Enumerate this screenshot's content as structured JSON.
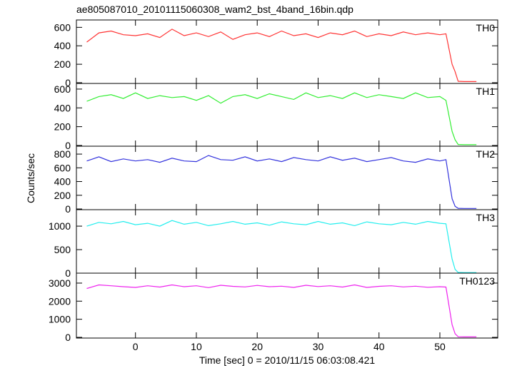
{
  "chart_data": [
    {
      "type": "line",
      "title": "ae805087010_20101115060308_wam2_bst_4band_16bin.qdp",
      "x": [
        -8,
        -6,
        -4,
        -2,
        0,
        2,
        4,
        6,
        8,
        10,
        12,
        14,
        16,
        18,
        20,
        22,
        24,
        26,
        28,
        30,
        32,
        34,
        36,
        38,
        40,
        42,
        44,
        46,
        48,
        50,
        51,
        52,
        52.5,
        53,
        54,
        56
      ],
      "xlim": [
        -9.7,
        59.5
      ],
      "ylim": [
        -8,
        680
      ],
      "yticks": [
        0,
        200,
        400,
        600
      ],
      "series": [
        {
          "name": "TH0",
          "color": "#ff3333",
          "values": [
            440,
            540,
            560,
            520,
            510,
            530,
            490,
            580,
            510,
            540,
            500,
            550,
            470,
            520,
            540,
            500,
            560,
            510,
            530,
            490,
            540,
            520,
            560,
            500,
            530,
            510,
            550,
            520,
            540,
            520,
            530,
            200,
            120,
            15,
            12,
            12
          ]
        }
      ]
    },
    {
      "type": "line",
      "x": [
        -8,
        -6,
        -4,
        -2,
        0,
        2,
        4,
        6,
        8,
        10,
        12,
        14,
        16,
        18,
        20,
        22,
        24,
        26,
        28,
        30,
        32,
        34,
        36,
        38,
        40,
        42,
        44,
        46,
        48,
        50,
        51,
        52,
        52.5,
        53,
        54,
        56
      ],
      "xlim": [
        -9.7,
        59.5
      ],
      "ylim": [
        -8,
        660
      ],
      "yticks": [
        0,
        200,
        400,
        600
      ],
      "series": [
        {
          "name": "TH1",
          "color": "#33ee33",
          "values": [
            470,
            520,
            540,
            500,
            560,
            500,
            530,
            510,
            520,
            480,
            530,
            450,
            520,
            540,
            500,
            550,
            520,
            490,
            560,
            510,
            530,
            500,
            560,
            510,
            540,
            520,
            500,
            560,
            510,
            520,
            480,
            150,
            60,
            10,
            8,
            8
          ]
        }
      ]
    },
    {
      "type": "line",
      "ylabel": "Counts/sec",
      "x": [
        -8,
        -6,
        -4,
        -2,
        0,
        2,
        4,
        6,
        8,
        10,
        12,
        14,
        16,
        18,
        20,
        22,
        24,
        26,
        28,
        30,
        32,
        34,
        36,
        38,
        40,
        42,
        44,
        46,
        48,
        50,
        51,
        52,
        52.5,
        53,
        54,
        56
      ],
      "xlim": [
        -9.7,
        59.5
      ],
      "ylim": [
        -10,
        915
      ],
      "yticks": [
        0,
        200,
        400,
        600,
        800
      ],
      "series": [
        {
          "name": "TH2",
          "color": "#3333dd",
          "values": [
            700,
            760,
            690,
            730,
            700,
            720,
            680,
            740,
            700,
            690,
            780,
            720,
            710,
            760,
            700,
            730,
            690,
            750,
            720,
            700,
            760,
            710,
            740,
            690,
            720,
            750,
            700,
            680,
            730,
            700,
            720,
            150,
            40,
            10,
            8,
            8
          ]
        }
      ]
    },
    {
      "type": "line",
      "x": [
        -8,
        -6,
        -4,
        -2,
        0,
        2,
        4,
        6,
        8,
        10,
        12,
        14,
        16,
        18,
        20,
        22,
        24,
        26,
        28,
        30,
        32,
        34,
        36,
        38,
        40,
        42,
        44,
        46,
        48,
        50,
        51,
        52,
        52.5,
        53,
        54,
        56
      ],
      "xlim": [
        -9.7,
        59.5
      ],
      "ylim": [
        0,
        1350
      ],
      "yticks": [
        0,
        500,
        1000
      ],
      "series": [
        {
          "name": "TH3",
          "color": "#22eeee",
          "values": [
            1000,
            1080,
            1050,
            1100,
            1030,
            1060,
            1000,
            1120,
            1040,
            1080,
            1010,
            1050,
            1100,
            1040,
            1070,
            1020,
            1090,
            1050,
            1030,
            1100,
            1040,
            1070,
            1010,
            1090,
            1050,
            1030,
            1080,
            1040,
            1100,
            1060,
            1050,
            300,
            80,
            15,
            12,
            12
          ]
        }
      ]
    },
    {
      "type": "line",
      "xlabel": "Time [sec] 0 = 2010/11/15 06:03:08.421",
      "x": [
        -8,
        -6,
        -4,
        -2,
        0,
        2,
        4,
        6,
        8,
        10,
        12,
        14,
        16,
        18,
        20,
        22,
        24,
        26,
        28,
        30,
        32,
        34,
        36,
        38,
        40,
        42,
        44,
        46,
        48,
        50,
        51,
        52,
        52.5,
        53,
        54,
        56
      ],
      "xlim": [
        -9.7,
        59.5
      ],
      "ylim": [
        -40,
        3550
      ],
      "yticks": [
        0,
        1000,
        2000,
        3000
      ],
      "xticks": [
        0,
        10,
        20,
        30,
        40,
        50
      ],
      "series": [
        {
          "name": "TH0123",
          "color": "#ee22ee",
          "values": [
            2700,
            2900,
            2850,
            2800,
            2760,
            2850,
            2780,
            2900,
            2800,
            2850,
            2750,
            2880,
            2820,
            2790,
            2870,
            2800,
            2830,
            2760,
            2880,
            2810,
            2850,
            2780,
            2900,
            2760,
            2820,
            2850,
            2790,
            2830,
            2770,
            2800,
            2780,
            700,
            200,
            30,
            25,
            25
          ]
        }
      ]
    }
  ]
}
